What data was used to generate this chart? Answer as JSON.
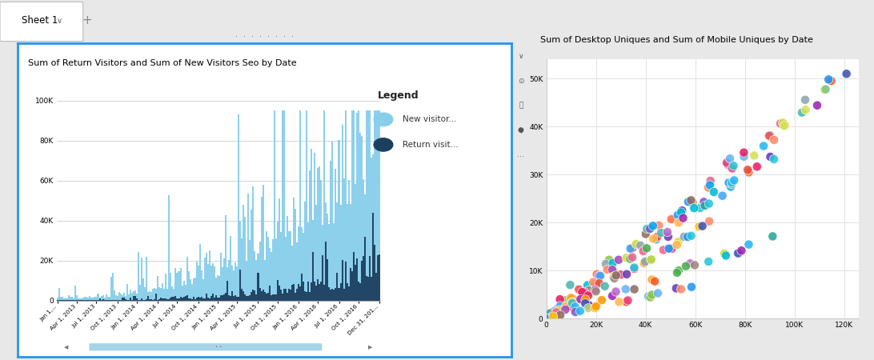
{
  "chart1": {
    "title": "Sum of Return Visitors and Sum of New Visitors Seo by Date",
    "xlabels": [
      "Jan 1,...",
      "Apr 1, 2013",
      "Jul 1, 2013",
      "Oct 1, 2013",
      "Jan 1, 2014",
      "Apr 1, 2014",
      "Jul 1, 2014",
      "Oct 1, 2014",
      "Jan 1, 2015",
      "Apr 1, 2015",
      "Jul 1, 2015",
      "Oct 1, 2015",
      "Jan 1, 2016",
      "Apr 1, 2016",
      "Jul 1, 2016",
      "Oct 1, 2016",
      "Dec 31, 201..."
    ],
    "ytick_labels": [
      "0",
      "20K",
      "40K",
      "60K",
      "80K",
      "100K"
    ],
    "yticks": [
      0,
      20000,
      40000,
      60000,
      80000,
      100000
    ],
    "new_visitors_color": "#87CEEB",
    "return_visitors_color": "#1C3F5E",
    "legend_new": "New visitor...",
    "legend_return": "Return visit...",
    "border_color": "#2196F3",
    "scrollbar_color": "#87CEEB",
    "n_bars": 200,
    "seed": 42
  },
  "chart2": {
    "title": "Sum of Desktop Uniques and Sum of Mobile Uniques by Date",
    "xtick_labels": [
      "0",
      "20K",
      "40K",
      "60K",
      "80K",
      "100K",
      "120K"
    ],
    "xticks": [
      0,
      20000,
      40000,
      60000,
      80000,
      100000,
      120000
    ],
    "ytick_labels": [
      "0",
      "10K",
      "20K",
      "30K",
      "40K",
      "50K"
    ],
    "yticks": [
      0,
      10000,
      20000,
      30000,
      40000,
      50000
    ],
    "xlim": [
      0,
      126000
    ],
    "ylim": [
      0,
      54000
    ],
    "seed": 77,
    "colors_pool": [
      "#e74c3c",
      "#e91e63",
      "#9c27b0",
      "#673ab7",
      "#3f51b5",
      "#2196f3",
      "#03a9f4",
      "#00bcd4",
      "#009688",
      "#4caf50",
      "#8bc34a",
      "#cddc39",
      "#ffc107",
      "#ff9800",
      "#ff5722",
      "#f06292",
      "#ba68c8",
      "#64b5f6",
      "#4db6ac",
      "#81c784",
      "#aed581",
      "#ffb74d",
      "#ff8a65",
      "#a1887f",
      "#90a4ae",
      "#ef5350",
      "#ab47bc",
      "#5c6bc0",
      "#42a5f5",
      "#26c6da",
      "#26a69a",
      "#66bb6a",
      "#ffa726",
      "#8d6e63",
      "#ec407a",
      "#7e57c2",
      "#29b6f6",
      "#26c6da",
      "#d4e157",
      "#ff7043"
    ]
  },
  "overall_bg": "#e8e8e8",
  "tab_area_bg": "#d8d8d8",
  "tab_text": "Sheet 1"
}
